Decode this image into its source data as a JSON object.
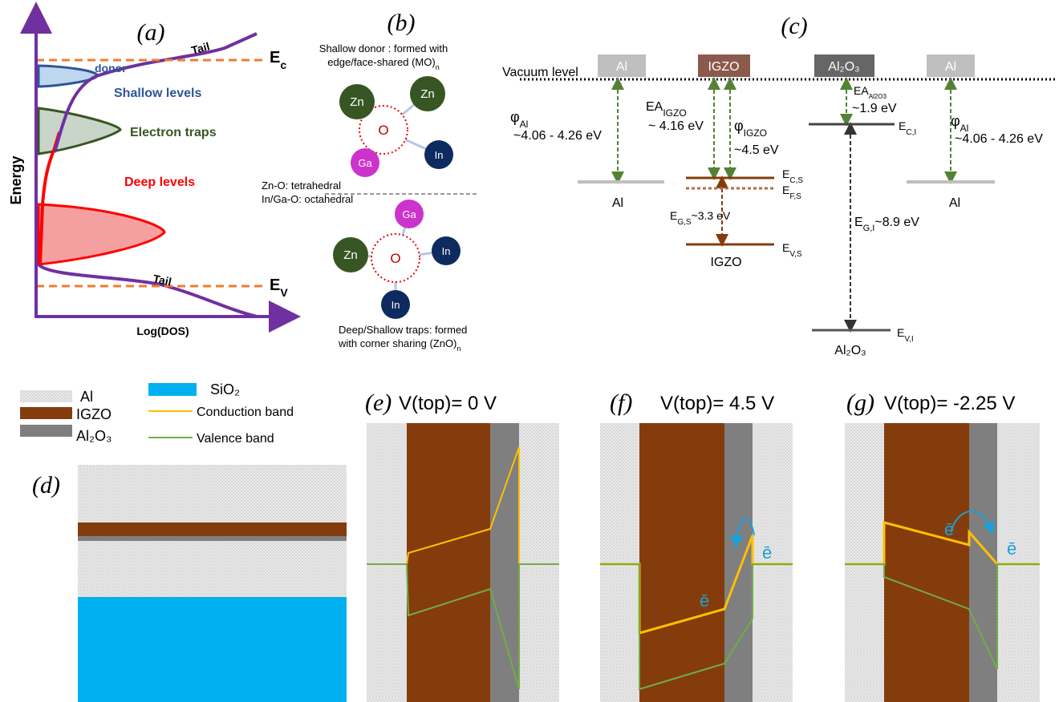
{
  "panel_a": {
    "label": "(a)",
    "y_axis": "Energy",
    "x_axis": "Log(DOS)",
    "donor": "donor",
    "shallow": "Shallow levels",
    "traps": "Electron traps",
    "deep": "Deep levels",
    "tail_top": "Tail",
    "tail_bottom": "Tail",
    "ec": [
      "E",
      "c"
    ],
    "ev": [
      "E",
      "V"
    ]
  },
  "panel_b": {
    "label": "(b)",
    "top_caption": [
      "Shallow donor : formed with",
      "edge/face-shared (MO)",
      "n"
    ],
    "top_atoms": [
      "Zn",
      "Zn",
      "O",
      "Ga",
      "In"
    ],
    "coordination": [
      "Zn-O: tetrahedral",
      "In/Ga-O: octahedral"
    ],
    "bottom_atoms": [
      "Ga",
      "Zn",
      "O",
      "In",
      "In"
    ],
    "bottom_caption": [
      "Deep/Shallow traps: formed",
      "with corner sharing (ZnO)",
      "n"
    ]
  },
  "panel_c": {
    "label": "(c)",
    "vacuum_level": "Vacuum level",
    "boxes": [
      "Al",
      "IGZO",
      "Al₂O₃",
      "Al"
    ],
    "phi_al_left": [
      "φ",
      "Al"
    ],
    "phi_al_left_value": "~4.06 - 4.26 eV",
    "metal_left": "Al",
    "ea_igzo": [
      "EA",
      "IGZO"
    ],
    "ea_igzo_value": "~ 4.16 eV",
    "phi_igzo": [
      "φ",
      "IGZO"
    ],
    "phi_igzo_value": "~4.5 eV",
    "ec_s": [
      "E",
      "C,S"
    ],
    "ef_s": [
      "E",
      "F,S"
    ],
    "ev_s": [
      "E",
      "V,S"
    ],
    "eg_s": [
      "E",
      "G,S",
      "~3.3 eV"
    ],
    "igzo": "IGZO",
    "ea_al2o3": [
      "EA",
      "Al2O3"
    ],
    "ea_al2o3_value": "~1.9 eV",
    "ec_i": [
      "E",
      "C,I"
    ],
    "eg_i": [
      "E",
      "G,I",
      "~8.9 eV"
    ],
    "ev_i": [
      "E",
      "V,I"
    ],
    "al2o3": "Al₂O₃",
    "phi_al_right": [
      "φ",
      "Al"
    ],
    "phi_al_right_value": "~4.06 - 4.26 eV",
    "metal_right": "Al"
  },
  "panel_d": {
    "label": "(d)",
    "legend": [
      "Al",
      "IGZO",
      "Al₂O₃",
      "SiO₂",
      "Conduction band",
      "Valence band"
    ]
  },
  "panel_e": {
    "label": "(e)",
    "title": "V(top)= 0 V"
  },
  "panel_f": {
    "label": "(f)",
    "title": "V(top)= 4.5 V",
    "electrons": [
      "ē",
      "ē"
    ]
  },
  "panel_g": {
    "label": "(g)",
    "title": "V(top)= -2.25 V",
    "electrons": [
      "ē",
      "ē"
    ]
  }
}
